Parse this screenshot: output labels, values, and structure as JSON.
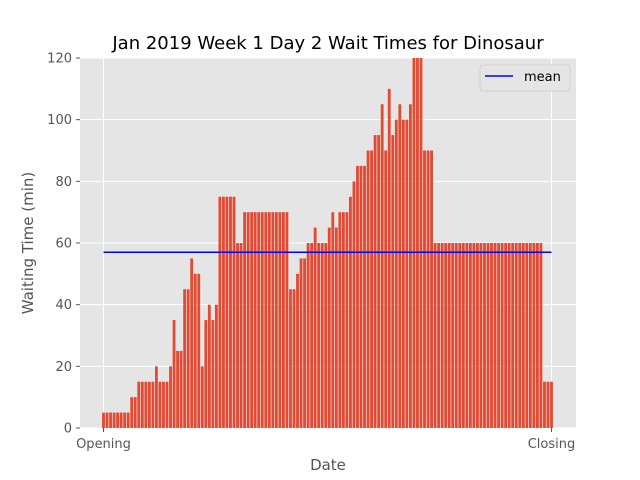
{
  "chart_data": {
    "type": "bar",
    "title": "Jan 2019 Week 1 Day 2 Wait Times for Dinosaur",
    "xlabel": "Date",
    "ylabel": "Waiting Time (min)",
    "ylim": [
      0,
      120
    ],
    "yticks": [
      0,
      20,
      40,
      60,
      80,
      100,
      120
    ],
    "xticks": [
      "Opening",
      "Closing"
    ],
    "grid": true,
    "legend": {
      "placement": "top-right",
      "entries": [
        "mean"
      ]
    },
    "colors": {
      "bar": "#E24A33",
      "mean_line": "#0000FF",
      "plot_bg": "#E5E5E5",
      "grid": "#FFFFFF"
    },
    "mean": 57,
    "values": [
      5,
      5,
      5,
      5,
      5,
      5,
      5,
      5,
      10,
      10,
      15,
      15,
      15,
      15,
      15,
      20,
      15,
      15,
      15,
      20,
      35,
      25,
      25,
      45,
      45,
      55,
      50,
      50,
      20,
      35,
      40,
      35,
      40,
      75,
      75,
      75,
      75,
      75,
      60,
      60,
      70,
      70,
      70,
      70,
      70,
      70,
      70,
      70,
      70,
      70,
      70,
      70,
      70,
      45,
      45,
      50,
      55,
      55,
      60,
      60,
      65,
      60,
      60,
      60,
      65,
      70,
      65,
      70,
      70,
      70,
      75,
      80,
      85,
      85,
      85,
      90,
      90,
      95,
      95,
      105,
      90,
      110,
      95,
      100,
      105,
      100,
      100,
      105,
      120,
      120,
      120,
      90,
      90,
      90,
      60,
      60,
      60,
      60,
      60,
      60,
      60,
      60,
      60,
      60,
      60,
      60,
      60,
      60,
      60,
      60,
      60,
      60,
      60,
      60,
      60,
      60,
      60,
      60,
      60,
      60,
      60,
      60,
      60,
      60,
      60,
      15,
      15,
      15
    ]
  }
}
